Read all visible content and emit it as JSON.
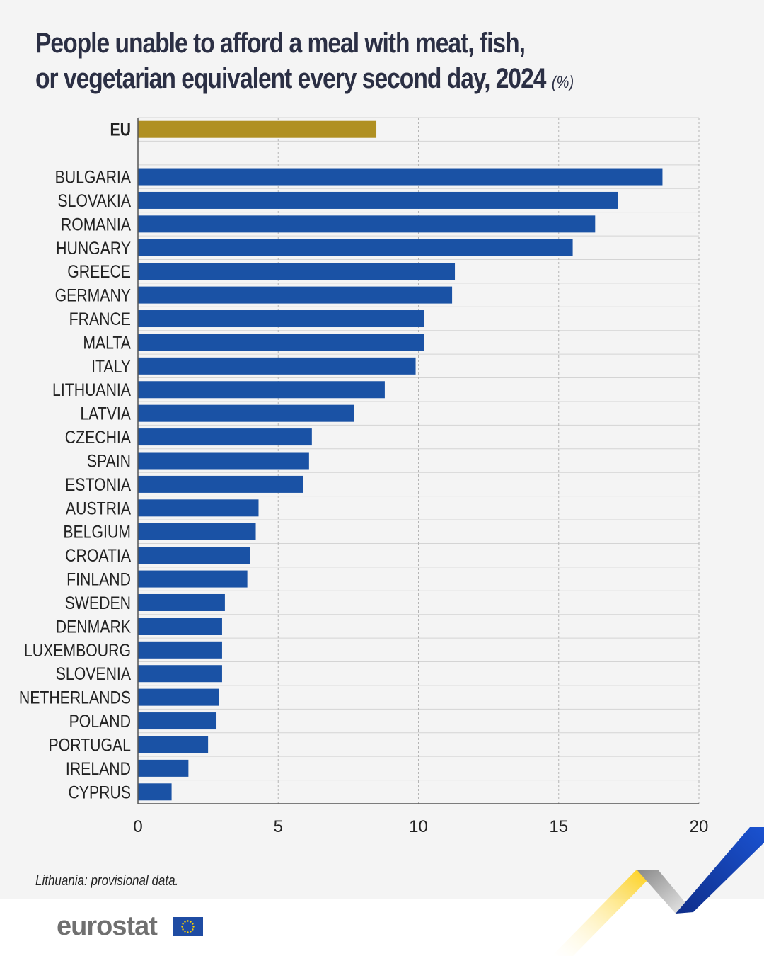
{
  "title_line1": "People unable to afford a meal with meat, fish,",
  "title_line2": "or vegetarian equivalent every second day, 2024",
  "unit": "(%)",
  "note": "Lithuania: provisional data.",
  "logo": "eurostat",
  "colors": {
    "eu": "#b09022",
    "country": "#1a52a5",
    "background": "#f4f4f4"
  },
  "chart_data": {
    "type": "bar",
    "orientation": "horizontal",
    "categories": [
      "EU",
      "BULGARIA",
      "SLOVAKIA",
      "ROMANIA",
      "HUNGARY",
      "GREECE",
      "GERMANY",
      "FRANCE",
      "MALTA",
      "ITALY",
      "LITHUANIA",
      "LATVIA",
      "CZECHIA",
      "SPAIN",
      "ESTONIA",
      "AUSTRIA",
      "BELGIUM",
      "CROATIA",
      "FINLAND",
      "SWEDEN",
      "DENMARK",
      "LUXEMBOURG",
      "SLOVENIA",
      "NETHERLANDS",
      "POLAND",
      "PORTUGAL",
      "IRELAND",
      "CYPRUS"
    ],
    "values": [
      8.5,
      18.7,
      17.1,
      16.3,
      15.5,
      11.3,
      11.2,
      10.2,
      10.2,
      9.9,
      8.8,
      7.7,
      6.2,
      6.1,
      5.9,
      4.3,
      4.2,
      4.0,
      3.9,
      3.1,
      3.0,
      3.0,
      3.0,
      2.9,
      2.8,
      2.5,
      1.8,
      1.2
    ],
    "xlim": [
      0,
      20
    ],
    "xticks": [
      "0",
      "5",
      "10",
      "15",
      "20"
    ],
    "grid": true
  }
}
